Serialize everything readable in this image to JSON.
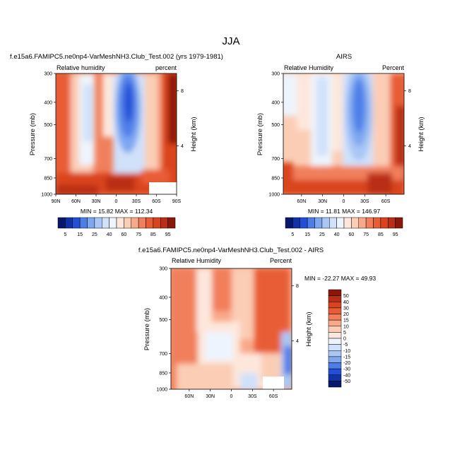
{
  "figure": {
    "title": "JJA"
  },
  "chart_data": [
    {
      "type": "heatmap",
      "title": "f.e15a6.FAMIPC5.ne0np4-VarMeshNH3.Club_Test.002 (yrs 1979-1981)",
      "left_label": "Relative humidity",
      "right_label": "percent",
      "ylabel": "Pressure (mb)",
      "ylabel_right": "Height (km)",
      "xticks": [
        "90N",
        "60N",
        "30N",
        "0",
        "30S",
        "60S",
        "90S"
      ],
      "yticks": [
        "300",
        "400",
        "500",
        "700",
        "850",
        "1000"
      ],
      "yticks_right": [
        "8",
        "4"
      ],
      "stats": "MIN = 15.82  MAX = 112.34",
      "colorbar_labels": [
        "5",
        "15",
        "25",
        "40",
        "60",
        "75",
        "85",
        "95"
      ]
    },
    {
      "type": "heatmap",
      "title": "AIRS",
      "left_label": "Relative Humidity",
      "right_label": "Percent",
      "ylabel": "Pressure (mb)",
      "ylabel_right": "Height (km)",
      "xticks": [
        "60N",
        "30N",
        "0",
        "30S",
        "60S"
      ],
      "yticks": [
        "300",
        "400",
        "500",
        "700",
        "850",
        "1000"
      ],
      "yticks_right": [
        "8",
        "4"
      ],
      "stats": "MIN = 11.81  MAX = 146.97",
      "colorbar_labels": [
        "5",
        "15",
        "25",
        "40",
        "60",
        "75",
        "85",
        "95"
      ]
    },
    {
      "type": "heatmap",
      "title": "f.e15a6.FAMIPC5.ne0np4-VarMeshNH3.Club_Test.002 - AIRS",
      "left_label": "Relative Humidity",
      "right_label": "Percent",
      "ylabel": "Pressure (mb)",
      "ylabel_right": "Height (km)",
      "xticks": [
        "60N",
        "30N",
        "0",
        "30S",
        "60S"
      ],
      "yticks": [
        "300",
        "400",
        "500",
        "700",
        "850",
        "1000"
      ],
      "yticks_right": [
        "8",
        "4"
      ],
      "stats": "MIN = -22.27  MAX =  49.93",
      "colorbar_labels": [
        "50",
        "40",
        "30",
        "20",
        "15",
        "10",
        "5",
        "0",
        "-5",
        "-10",
        "-15",
        "-20",
        "-30",
        "-40",
        "-50"
      ]
    }
  ],
  "colors": {
    "abs_scale": [
      "#08196b",
      "#1233a8",
      "#2150d6",
      "#4d7ee8",
      "#7ea7f0",
      "#a9c6f5",
      "#d0e1fa",
      "#eef4fd",
      "#fde7dc",
      "#fbcdb5",
      "#f8a98a",
      "#f17f5b",
      "#e85d35",
      "#d9441c",
      "#b92f13",
      "#8b1708"
    ],
    "diff_scale": [
      "#8b1708",
      "#b92f13",
      "#d9441c",
      "#e85d35",
      "#f17f5b",
      "#f8a98a",
      "#fbcdb5",
      "#fde7dc",
      "#eef4fd",
      "#d0e1fa",
      "#a9c6f5",
      "#7ea7f0",
      "#4d7ee8",
      "#2150d6",
      "#1233a8",
      "#08196b"
    ]
  }
}
